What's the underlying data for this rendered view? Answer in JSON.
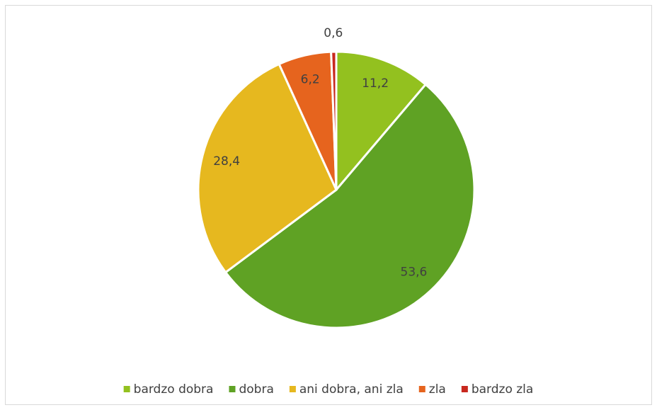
{
  "chart_data": {
    "type": "pie",
    "categories": [
      "bardzo dobra",
      "dobra",
      "ani dobra, ani zla",
      "zla",
      "bardzo zla"
    ],
    "values": [
      11.2,
      53.6,
      28.4,
      6.2,
      0.6
    ],
    "value_labels": [
      "11,2",
      "53,6",
      "28,4",
      "6,2",
      "0,6"
    ],
    "colors": [
      "#93c11f",
      "#5fa224",
      "#e6b81f",
      "#e6641e",
      "#c8281e"
    ],
    "legend": "bottom"
  }
}
